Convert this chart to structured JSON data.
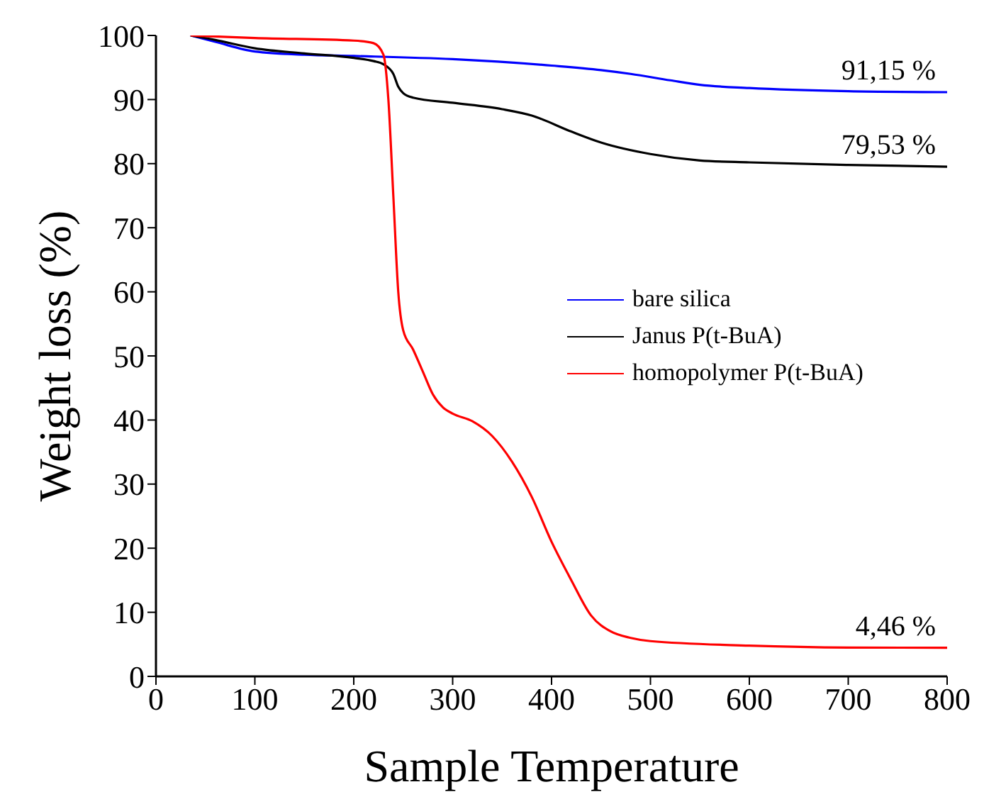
{
  "chart_data": {
    "type": "line",
    "xlabel": "Sample Temperature",
    "ylabel": "Weight loss (%)",
    "xlim": [
      0,
      800
    ],
    "ylim": [
      0,
      100
    ],
    "xticks": [
      0,
      100,
      200,
      300,
      400,
      500,
      600,
      700,
      800
    ],
    "yticks": [
      0,
      10,
      20,
      30,
      40,
      50,
      60,
      70,
      80,
      90,
      100
    ],
    "grid": false,
    "legend": "right",
    "marker": "none",
    "line_style": "solid",
    "series": [
      {
        "name": "bare silica",
        "color": "#0000ff",
        "x": [
          35,
          60,
          100,
          150,
          200,
          300,
          400,
          450,
          480,
          520,
          550,
          600,
          700,
          800
        ],
        "values": [
          100,
          99,
          97.5,
          97,
          96.8,
          96.3,
          95.3,
          94.6,
          94,
          93,
          92.3,
          91.8,
          91.3,
          91.15
        ]
      },
      {
        "name": "Janus P(t-BuA)",
        "color": "#000000",
        "x": [
          35,
          60,
          100,
          150,
          200,
          220,
          230,
          240,
          245,
          250,
          260,
          300,
          350,
          380,
          420,
          450,
          500,
          550,
          600,
          700,
          800
        ],
        "values": [
          100,
          99.3,
          98,
          97.2,
          96.5,
          96,
          95.5,
          94,
          92,
          91,
          90.3,
          89.5,
          88.5,
          87.5,
          85,
          83.3,
          81.5,
          80.5,
          80.2,
          79.8,
          79.53
        ]
      },
      {
        "name": "homopolymer P(t-BuA)",
        "color": "#ff0000",
        "x": [
          35,
          100,
          200,
          220,
          230,
          235,
          240,
          245,
          250,
          260,
          270,
          280,
          290,
          300,
          320,
          340,
          360,
          380,
          400,
          420,
          440,
          460,
          480,
          500,
          600,
          700,
          800
        ],
        "values": [
          100,
          99.6,
          99.2,
          98.8,
          97,
          90,
          75,
          60,
          54,
          51,
          47.5,
          44,
          42,
          41,
          39.8,
          37.5,
          33.5,
          28,
          21,
          15,
          9.5,
          7,
          6,
          5.5,
          4.8,
          4.5,
          4.46
        ]
      }
    ],
    "annotations": [
      {
        "text": "91,15 %",
        "y": 91.15
      },
      {
        "text": "79,53 %",
        "y": 79.53
      },
      {
        "text": "4,46 %",
        "y": 4.46
      }
    ]
  }
}
